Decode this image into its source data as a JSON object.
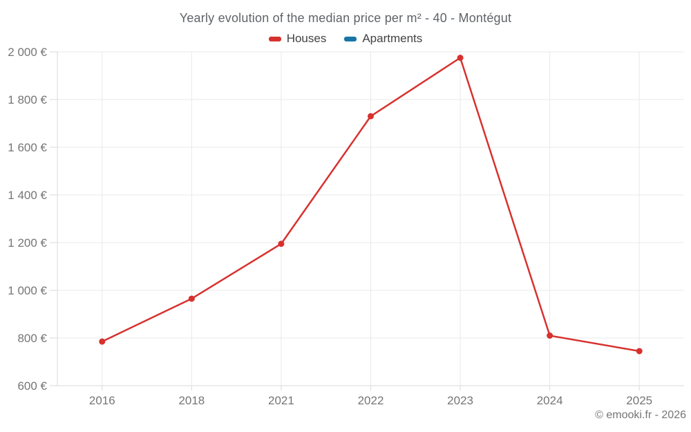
{
  "footer": {
    "text": "© emooki.fr - 2026"
  },
  "colors": {
    "background": "#ffffff",
    "grid": "#e9e9e9",
    "axis": "#d9d9d9",
    "title_text": "#5f6368",
    "legend_text": "#424242",
    "axis_label_text": "#757575",
    "houses": "#d7312e",
    "apartments": "#1776a6"
  },
  "chart_data": {
    "type": "line",
    "title": "Yearly evolution of the median price per m² - 40 - Montégut",
    "categories": [
      "2016",
      "2018",
      "2021",
      "2022",
      "2023",
      "2024",
      "2025"
    ],
    "series": [
      {
        "name": "Houses",
        "color": "#d7312e",
        "values": [
          785,
          965,
          1195,
          1730,
          1975,
          810,
          745
        ]
      },
      {
        "name": "Apartments",
        "color": "#1776a6",
        "values": []
      }
    ],
    "xlabel": "",
    "ylabel": "",
    "ylim": [
      600,
      2000
    ],
    "ytick_step": 200,
    "ytick_labels": [
      "600 €",
      "800 €",
      "1 000 €",
      "1 200 €",
      "1 400 €",
      "1 600 €",
      "1 800 €",
      "2 000 €"
    ],
    "grid": true,
    "legend_position": "top",
    "point_radius": 4.5,
    "line_width": 2.5
  }
}
